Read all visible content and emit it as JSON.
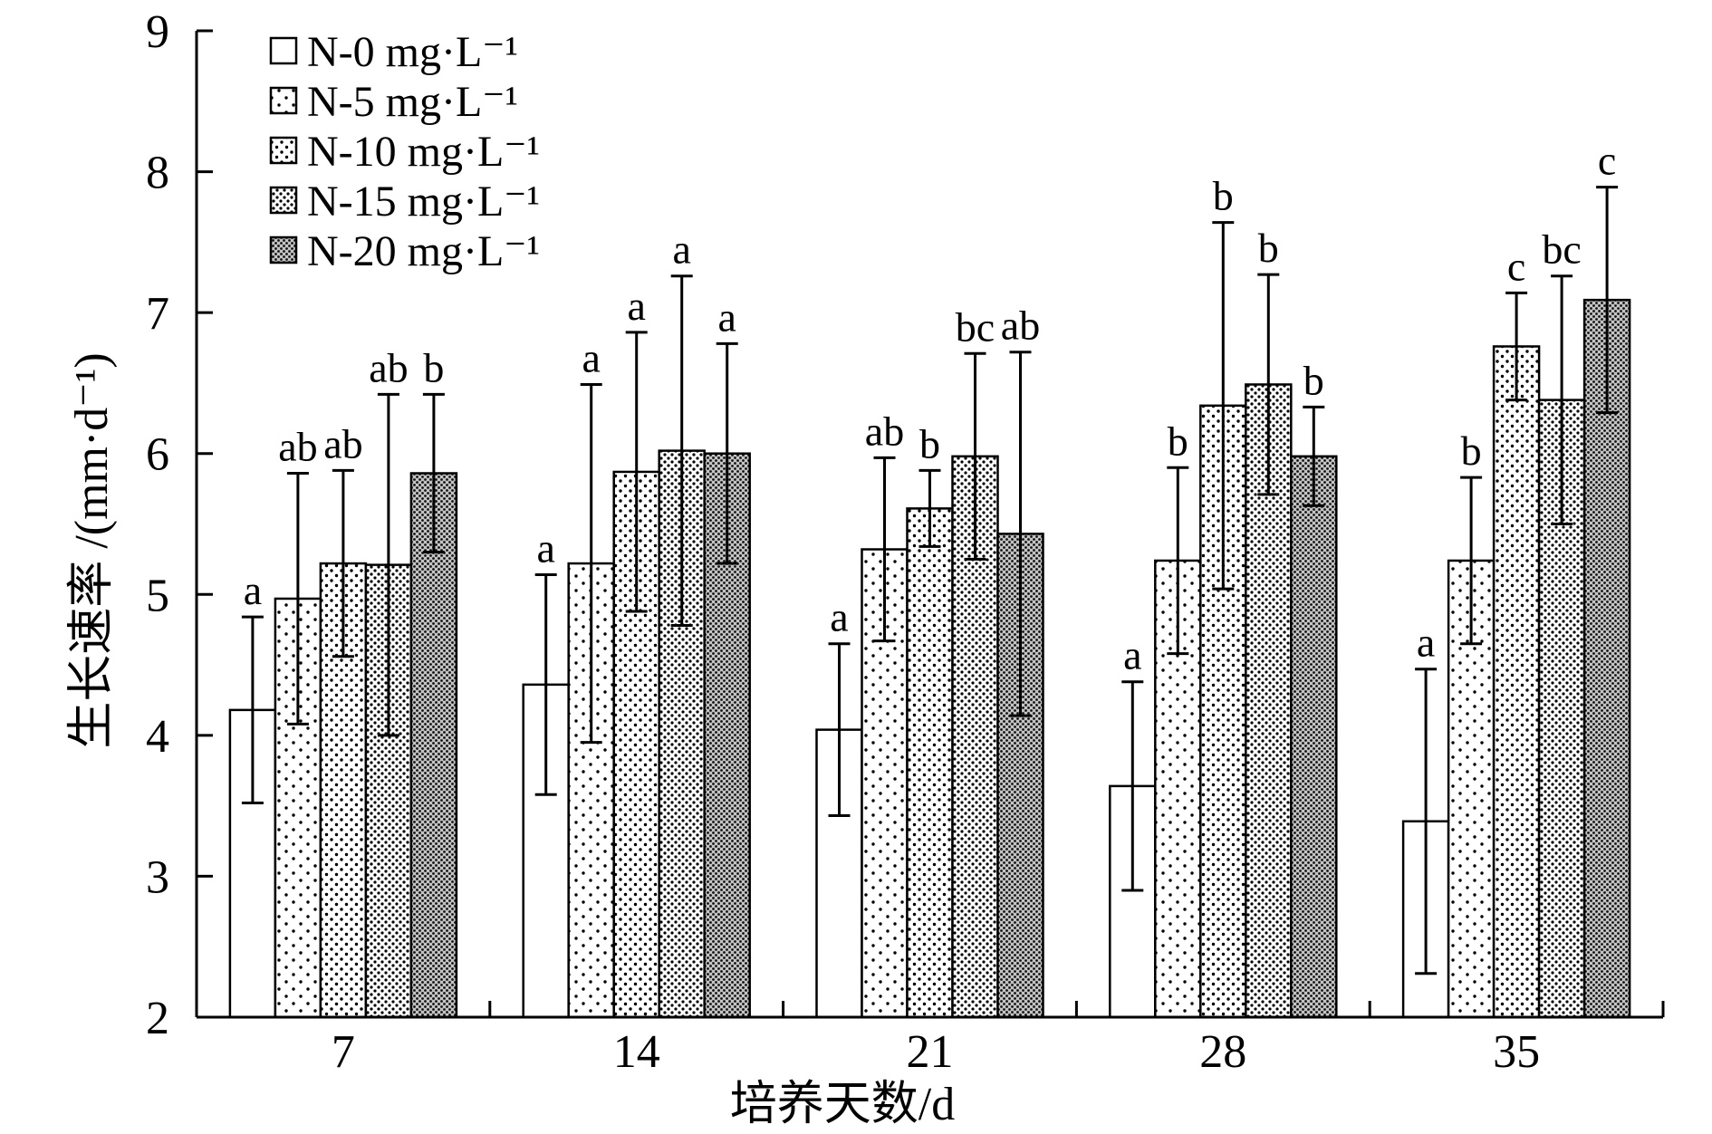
{
  "chart_data": {
    "type": "bar",
    "categories": [
      "7",
      "14",
      "21",
      "28",
      "35"
    ],
    "series": [
      {
        "name": "N-0 mg·L⁻¹",
        "values": [
          4.18,
          4.36,
          4.04,
          3.64,
          3.39
        ],
        "errors": [
          0.66,
          0.78,
          0.61,
          0.74,
          1.08
        ],
        "letters": [
          "a",
          "a",
          "a",
          "a",
          "a"
        ]
      },
      {
        "name": "N-5 mg·L⁻¹",
        "values": [
          4.97,
          5.22,
          5.32,
          5.24,
          5.24
        ],
        "errors": [
          0.89,
          1.27,
          0.65,
          0.66,
          0.59
        ],
        "letters": [
          "ab",
          "a",
          "ab",
          "b",
          "b"
        ]
      },
      {
        "name": "N-10 mg·L⁻¹",
        "values": [
          5.22,
          5.87,
          5.61,
          6.34,
          6.76
        ],
        "errors": [
          0.66,
          0.99,
          0.27,
          1.3,
          0.38
        ],
        "letters": [
          "ab",
          "a",
          "b",
          "b",
          "c"
        ]
      },
      {
        "name": "N-15 mg·L⁻¹",
        "values": [
          5.21,
          6.02,
          5.98,
          6.49,
          6.38
        ],
        "errors": [
          1.21,
          1.24,
          0.73,
          0.78,
          0.88
        ],
        "letters": [
          "ab",
          "a",
          "bc",
          "b",
          "bc"
        ]
      },
      {
        "name": "N-20 mg·L⁻¹",
        "values": [
          5.86,
          6.0,
          5.43,
          5.98,
          7.09
        ],
        "errors": [
          0.56,
          0.78,
          1.29,
          0.35,
          0.8
        ],
        "letters": [
          "b",
          "a",
          "ab",
          "b",
          "c"
        ]
      }
    ],
    "xlabel": "培养天数/d",
    "ylabel": "生长速率 /(mm·d⁻¹)",
    "ylim": [
      2,
      9
    ],
    "yticks": [
      2,
      3,
      4,
      5,
      6,
      7,
      8,
      9
    ],
    "legend": "top-left",
    "grid": false,
    "error_bars": true
  }
}
